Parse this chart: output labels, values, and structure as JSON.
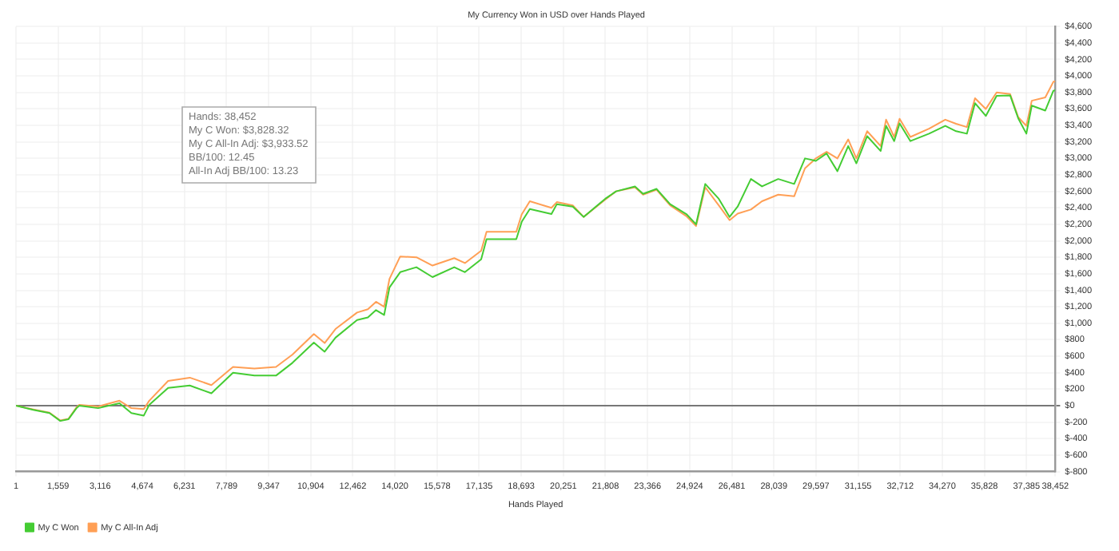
{
  "chart_data": {
    "type": "line",
    "title": "My Currency Won in USD over Hands Played",
    "xlabel": "Hands Played",
    "annotations": [
      "Hands: 38,452",
      "My C Won: $3,828.32",
      "My C All-In Adj: $3,933.52",
      "BB/100: 12.45",
      "All-In Adj BB/100: 13.23"
    ],
    "x": [
      1,
      640,
      1240,
      1640,
      1940,
      2240,
      2340,
      3040,
      3830,
      4270,
      4730,
      4930,
      5630,
      6430,
      7230,
      8030,
      8820,
      9620,
      10230,
      11020,
      11420,
      11820,
      12620,
      13020,
      13320,
      13620,
      13820,
      14215,
      14815,
      15410,
      16215,
      16610,
      17210,
      17410,
      18510,
      18710,
      19010,
      19810,
      20010,
      20600,
      21000,
      21800,
      22200,
      22900,
      23200,
      23700,
      24200,
      24800,
      25160,
      25500,
      26000,
      26400,
      26700,
      27190,
      27600,
      28200,
      28790,
      29190,
      29590,
      29990,
      30390,
      30790,
      31090,
      31490,
      31990,
      32190,
      32490,
      32690,
      33090,
      33780,
      34380,
      34780,
      35180,
      35480,
      35880,
      36280,
      36780,
      37080,
      37380,
      37580,
      38080,
      38380,
      38452
    ],
    "series": [
      {
        "name": "My C Won",
        "color": "#44cc33",
        "values": [
          0,
          -50,
          -90,
          -185,
          -165,
          -30,
          0,
          -30,
          30,
          -90,
          -120,
          10,
          215,
          245,
          150,
          400,
          365,
          365,
          520,
          765,
          655,
          825,
          1040,
          1070,
          1160,
          1100,
          1435,
          1620,
          1680,
          1560,
          1680,
          1620,
          1775,
          2020,
          2020,
          2230,
          2385,
          2325,
          2445,
          2415,
          2290,
          2510,
          2600,
          2660,
          2570,
          2630,
          2445,
          2325,
          2200,
          2690,
          2510,
          2290,
          2415,
          2750,
          2660,
          2750,
          2690,
          3000,
          2970,
          3060,
          2845,
          3150,
          2940,
          3270,
          3090,
          3395,
          3210,
          3425,
          3210,
          3300,
          3395,
          3330,
          3300,
          3670,
          3515,
          3760,
          3765,
          3485,
          3300,
          3640,
          3580,
          3820,
          3828.32
        ]
      },
      {
        "name": "My C All-In Adj",
        "color": "#ff9f55",
        "values": [
          0,
          -45,
          -85,
          -180,
          -160,
          -20,
          10,
          -10,
          60,
          -30,
          -40,
          60,
          300,
          340,
          250,
          470,
          450,
          470,
          620,
          870,
          760,
          930,
          1130,
          1170,
          1260,
          1200,
          1540,
          1810,
          1800,
          1700,
          1790,
          1730,
          1880,
          2110,
          2110,
          2320,
          2480,
          2400,
          2470,
          2430,
          2290,
          2500,
          2600,
          2650,
          2560,
          2620,
          2430,
          2300,
          2180,
          2650,
          2430,
          2250,
          2330,
          2380,
          2480,
          2560,
          2540,
          2880,
          3000,
          3080,
          3000,
          3230,
          3000,
          3330,
          3150,
          3470,
          3260,
          3480,
          3260,
          3360,
          3470,
          3420,
          3380,
          3730,
          3600,
          3800,
          3780,
          3500,
          3395,
          3700,
          3740,
          3930,
          3933.52
        ]
      }
    ],
    "xlim": [
      1,
      38452
    ],
    "xticks": [
      {
        "value": 1,
        "label": "1"
      },
      {
        "value": 1559,
        "label": "1,559"
      },
      {
        "value": 3116,
        "label": "3,116"
      },
      {
        "value": 4674,
        "label": "4,674"
      },
      {
        "value": 6231,
        "label": "6,231"
      },
      {
        "value": 7789,
        "label": "7,789"
      },
      {
        "value": 9347,
        "label": "9,347"
      },
      {
        "value": 10904,
        "label": "10,904"
      },
      {
        "value": 12462,
        "label": "12,462"
      },
      {
        "value": 14020,
        "label": "14,020"
      },
      {
        "value": 15578,
        "label": "15,578"
      },
      {
        "value": 17135,
        "label": "17,135"
      },
      {
        "value": 18693,
        "label": "18,693"
      },
      {
        "value": 20251,
        "label": "20,251"
      },
      {
        "value": 21808,
        "label": "21,808"
      },
      {
        "value": 23366,
        "label": "23,366"
      },
      {
        "value": 24924,
        "label": "24,924"
      },
      {
        "value": 26481,
        "label": "26,481"
      },
      {
        "value": 28039,
        "label": "28,039"
      },
      {
        "value": 29597,
        "label": "29,597"
      },
      {
        "value": 31155,
        "label": "31,155"
      },
      {
        "value": 32712,
        "label": "32,712"
      },
      {
        "value": 34270,
        "label": "34,270"
      },
      {
        "value": 35828,
        "label": "35,828"
      },
      {
        "value": 37385,
        "label": "37,385"
      },
      {
        "value": 38452,
        "label": "38,452"
      }
    ],
    "ylim": [
      -800,
      4600
    ],
    "yticks": [
      {
        "value": -800,
        "label": "$-800"
      },
      {
        "value": -600,
        "label": "$-600"
      },
      {
        "value": -400,
        "label": "$-400"
      },
      {
        "value": -200,
        "label": "$-200"
      },
      {
        "value": 0,
        "label": "$0"
      },
      {
        "value": 200,
        "label": "$200"
      },
      {
        "value": 400,
        "label": "$400"
      },
      {
        "value": 600,
        "label": "$600"
      },
      {
        "value": 800,
        "label": "$800"
      },
      {
        "value": 1000,
        "label": "$1,000"
      },
      {
        "value": 1200,
        "label": "$1,200"
      },
      {
        "value": 1400,
        "label": "$1,400"
      },
      {
        "value": 1600,
        "label": "$1,600"
      },
      {
        "value": 1800,
        "label": "$1,800"
      },
      {
        "value": 2000,
        "label": "$2,000"
      },
      {
        "value": 2200,
        "label": "$2,200"
      },
      {
        "value": 2400,
        "label": "$2,400"
      },
      {
        "value": 2600,
        "label": "$2,600"
      },
      {
        "value": 2800,
        "label": "$2,800"
      },
      {
        "value": 3000,
        "label": "$3,000"
      },
      {
        "value": 3200,
        "label": "$3,200"
      },
      {
        "value": 3400,
        "label": "$3,400"
      },
      {
        "value": 3600,
        "label": "$3,600"
      },
      {
        "value": 3800,
        "label": "$3,800"
      },
      {
        "value": 4000,
        "label": "$4,000"
      },
      {
        "value": 4200,
        "label": "$4,200"
      },
      {
        "value": 4400,
        "label": "$4,400"
      },
      {
        "value": 4600,
        "label": "$4,600"
      }
    ],
    "grid": true,
    "legend": "bottom left",
    "marker": "none"
  }
}
